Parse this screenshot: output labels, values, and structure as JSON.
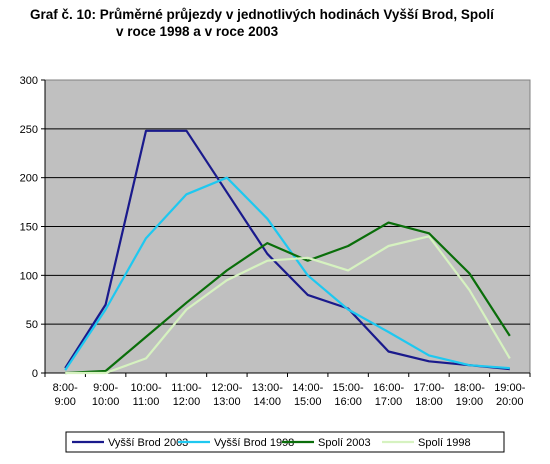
{
  "chart_data": {
    "type": "line",
    "title_line1": "Graf č. 10: Průměrné průjezdy v jednotlivých hodinách Vyšší Brod, Spolí",
    "title_line2": "v roce 1998 a v roce 2003",
    "categories": [
      [
        "8:00-",
        "9:00"
      ],
      [
        "9:00-",
        "10:00"
      ],
      [
        "10:00-",
        "11:00"
      ],
      [
        "11:00-",
        "12:00"
      ],
      [
        "12:00-",
        "13:00"
      ],
      [
        "13:00-",
        "14:00"
      ],
      [
        "14:00-",
        "15:00"
      ],
      [
        "15:00-",
        "16:00"
      ],
      [
        "16:00-",
        "17:00"
      ],
      [
        "17:00-",
        "18:00"
      ],
      [
        "18:00-",
        "19:00"
      ],
      [
        "19:00-",
        "20:00"
      ]
    ],
    "ylim": [
      0,
      300
    ],
    "yticks": [
      0,
      50,
      100,
      150,
      200,
      250,
      300
    ],
    "grid": true,
    "legend_position": "bottom",
    "series": [
      {
        "name": "Vyšší Brod 2003",
        "color": "#1a1a8c",
        "values": [
          5,
          70,
          248,
          248,
          185,
          122,
          80,
          66,
          22,
          12,
          8,
          4
        ]
      },
      {
        "name": "Vyšší Brod 1998",
        "color": "#1ec8f0",
        "values": [
          3,
          65,
          138,
          183,
          200,
          158,
          100,
          65,
          42,
          18,
          8,
          5
        ]
      },
      {
        "name": "Spolí 2003",
        "color": "#0a6e0a",
        "values": [
          0,
          2,
          37,
          72,
          105,
          133,
          115,
          130,
          154,
          143,
          102,
          38
        ]
      },
      {
        "name": "Spolí 1998",
        "color": "#d6f2c0",
        "values": [
          0,
          0,
          15,
          65,
          95,
          115,
          118,
          105,
          130,
          140,
          85,
          15
        ]
      }
    ]
  }
}
